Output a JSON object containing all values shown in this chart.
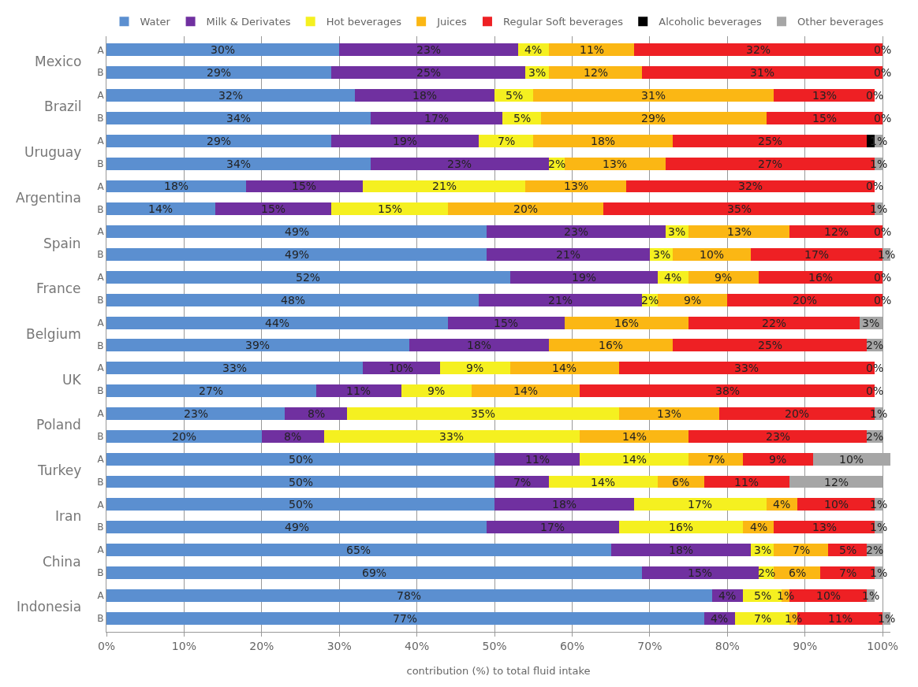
{
  "chart_data": {
    "type": "bar",
    "orientation": "horizontal",
    "stacked": true,
    "xlabel": "contribution (%) to total fluid intake",
    "categories": [
      "A",
      "B",
      "A",
      "B",
      "A",
      "B",
      "A",
      "B",
      "A",
      "B",
      "A",
      "B",
      "A",
      "B",
      "A",
      "B",
      "A",
      "B",
      "A",
      "B",
      "A",
      "B",
      "A",
      "B",
      "A",
      "B"
    ],
    "annotations": [
      "Mexico",
      "Brazil",
      "Uruguay",
      "Argentina",
      "Spain",
      "France",
      "Belgium",
      "UK",
      "Poland",
      "Turkey",
      "Iran",
      "China",
      "Indonesia"
    ],
    "series": [
      {
        "name": "Water",
        "color": "#5b8fd0",
        "values": [
          30,
          29,
          32,
          34,
          29,
          34,
          18,
          14,
          49,
          49,
          52,
          48,
          44,
          39,
          33,
          27,
          23,
          20,
          50,
          50,
          50,
          49,
          65,
          69,
          78,
          77
        ],
        "value_labels": [
          "30%",
          "29%",
          "32%",
          "34%",
          "29%",
          "34%",
          "18%",
          "14%",
          "49%",
          "49%",
          "52%",
          "48%",
          "44%",
          "39%",
          "33%",
          "27%",
          "23%",
          "20%",
          "50%",
          "50%",
          "50%",
          "49%",
          "65%",
          "69%",
          "78%",
          "77%"
        ]
      },
      {
        "name": "Milk & Derivates",
        "color": "#7030a0",
        "values": [
          23,
          25,
          18,
          17,
          19,
          23,
          15,
          15,
          23,
          21,
          19,
          21,
          15,
          18,
          10,
          11,
          8,
          8,
          11,
          7,
          18,
          17,
          18,
          15,
          4,
          4
        ],
        "value_labels": [
          "23%",
          "25%",
          "18%",
          "17%",
          "19%",
          "23%",
          "15%",
          "15%",
          "23%",
          "21%",
          "19%",
          "21%",
          "15%",
          "18%",
          "10%",
          "11%",
          "8%",
          "8%",
          "11%",
          "7%",
          "18%",
          "17%",
          "18%",
          "15%",
          "4%",
          "4%"
        ]
      },
      {
        "name": "Hot beverages",
        "color": "#f5f020",
        "values": [
          4,
          3,
          5,
          5,
          7,
          2,
          21,
          15,
          3,
          3,
          4,
          2,
          null,
          null,
          9,
          9,
          35,
          33,
          14,
          14,
          17,
          16,
          3,
          2,
          5,
          7
        ],
        "value_labels": [
          "4%",
          "3%",
          "5%",
          "5%",
          "7%",
          "2%",
          "21%",
          "15%",
          "3%",
          "3%",
          "4%",
          "2%",
          null,
          null,
          "9%",
          "9%",
          "35%",
          "33%",
          "14%",
          "14%",
          "17%",
          "16%",
          "3%",
          "2%",
          "5%",
          "7%"
        ]
      },
      {
        "name": "Juices",
        "color": "#fbb714",
        "values": [
          11,
          12,
          31,
          29,
          18,
          13,
          13,
          20,
          13,
          10,
          9,
          9,
          16,
          16,
          14,
          14,
          13,
          14,
          7,
          6,
          4,
          4,
          7,
          6,
          1,
          1
        ],
        "value_labels": [
          "11%",
          "12%",
          "31%",
          "29%",
          "18%",
          "13%",
          "13%",
          "20%",
          "13%",
          "10%",
          "9%",
          "9%",
          "16%",
          "16%",
          "14%",
          "14%",
          "13%",
          "14%",
          "7%",
          "6%",
          "4%",
          "4%",
          "7%",
          "6%",
          "1%",
          "1%"
        ]
      },
      {
        "name": "Regular Soft beverages",
        "color": "#ee2024",
        "values": [
          32,
          31,
          13,
          15,
          25,
          27,
          32,
          35,
          12,
          17,
          16,
          20,
          22,
          25,
          33,
          38,
          20,
          23,
          9,
          11,
          10,
          13,
          5,
          7,
          10,
          11
        ],
        "value_labels": [
          "32%",
          "31%",
          "13%",
          "15%",
          "25%",
          "27%",
          "32%",
          "35%",
          "12%",
          "17%",
          "16%",
          "20%",
          "22%",
          "25%",
          "33%",
          "38%",
          "20%",
          "23%",
          "9%",
          "11%",
          "10%",
          "13%",
          "5%",
          "7%",
          "10%",
          "11%"
        ]
      },
      {
        "name": "Alcoholic beverages",
        "color": "#000000",
        "values": [
          0,
          0,
          0,
          0,
          1,
          null,
          0,
          0,
          0,
          null,
          0,
          0,
          0,
          0,
          0,
          0,
          0,
          null,
          null,
          null,
          null,
          null,
          null,
          null,
          null,
          null
        ]
      },
      {
        "name": "Other beverages",
        "color": "#a6a6a6",
        "values": [
          0,
          0,
          0,
          0,
          1,
          1,
          0,
          1,
          0,
          1,
          0,
          0,
          3,
          2,
          0,
          0,
          1,
          2,
          10,
          12,
          1,
          1,
          2,
          1,
          1,
          1
        ],
        "value_labels": [
          "0%",
          "0%",
          "0%",
          "0%",
          "1%",
          "1%",
          "0%",
          "1%",
          "0%",
          "1%",
          "0%",
          "0%",
          "3%",
          "2%",
          "0%",
          "0%",
          "1%",
          "2%",
          "10%",
          "12%",
          "1%",
          "1%",
          "2%",
          "1%",
          "1%",
          "1%"
        ]
      }
    ],
    "xlim": [
      0,
      101
    ],
    "xticks": [
      {
        "value": 0,
        "label": "0%"
      },
      {
        "value": 10,
        "label": "10%"
      },
      {
        "value": 20,
        "label": "20%"
      },
      {
        "value": 30,
        "label": "30%"
      },
      {
        "value": 40,
        "label": "40%"
      },
      {
        "value": 50,
        "label": "50%"
      },
      {
        "value": 60,
        "label": "60%"
      },
      {
        "value": 70,
        "label": "70%"
      },
      {
        "value": 80,
        "label": "80%"
      },
      {
        "value": 90,
        "label": "90%"
      },
      {
        "value": 100,
        "label": "100%"
      }
    ],
    "grid": "x",
    "legend": "top"
  }
}
